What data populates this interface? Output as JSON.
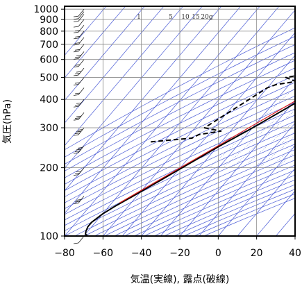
{
  "chart_data": {
    "type": "line",
    "subtype": "skew-t log-p sounding",
    "xlabel": "気温(実線), 露点(破線)",
    "ylabel": "気圧(hPa)",
    "xlim": [
      -80,
      40
    ],
    "ylim": [
      1030,
      100
    ],
    "y_scale": "log",
    "x_ticks": [
      "−80",
      "−60",
      "−40",
      "−20",
      "0",
      "20",
      "40"
    ],
    "x_tick_values": [
      -80,
      -60,
      -40,
      -20,
      0,
      20,
      40
    ],
    "y_ticks": [
      "100",
      "200",
      "300",
      "400",
      "500",
      "600",
      "700",
      "800",
      "900",
      "1000"
    ],
    "y_tick_values": [
      100,
      200,
      300,
      400,
      500,
      600,
      700,
      800,
      900,
      1000
    ],
    "grid": true,
    "mixing_ratio_labels": [
      "1",
      "5",
      "10",
      "15",
      "20g"
    ],
    "series": [
      {
        "role": "temperature",
        "style": "solid",
        "color": "#000000",
        "points": [
          [
            1000,
            27
          ],
          [
            975,
            25
          ],
          [
            950,
            24.5
          ],
          [
            925,
            22
          ],
          [
            900,
            20
          ],
          [
            850,
            16
          ],
          [
            800,
            13
          ],
          [
            750,
            9
          ],
          [
            700,
            6
          ],
          [
            650,
            3.5
          ],
          [
            620,
            2.5
          ],
          [
            600,
            3
          ],
          [
            550,
            0
          ],
          [
            500,
            -6
          ],
          [
            450,
            -11
          ],
          [
            400,
            -17
          ],
          [
            350,
            -23
          ],
          [
            300,
            -30
          ],
          [
            250,
            -39
          ],
          [
            200,
            -49
          ],
          [
            175,
            -55
          ],
          [
            150,
            -62
          ],
          [
            135,
            -67
          ],
          [
            125,
            -70
          ],
          [
            115,
            -72
          ],
          [
            110,
            -72
          ],
          [
            105,
            -71
          ],
          [
            102,
            -70
          ],
          [
            100,
            -68
          ]
        ]
      },
      {
        "role": "dewpoint",
        "style": "dashed",
        "color": "#000000",
        "points": [
          [
            1000,
            23
          ],
          [
            980,
            22
          ],
          [
            950,
            23
          ],
          [
            925,
            18
          ],
          [
            900,
            14
          ],
          [
            880,
            12
          ],
          [
            860,
            10
          ],
          [
            830,
            8
          ],
          [
            800,
            5
          ],
          [
            760,
            3
          ],
          [
            700,
            2
          ],
          [
            650,
            -2
          ],
          [
            620,
            -12
          ],
          [
            600,
            -35
          ],
          [
            590,
            -23
          ],
          [
            570,
            -33
          ],
          [
            550,
            -22
          ],
          [
            530,
            -31
          ],
          [
            520,
            -25
          ],
          [
            500,
            -35
          ],
          [
            480,
            -28
          ],
          [
            465,
            -37
          ],
          [
            450,
            -40
          ],
          [
            300,
            -55
          ],
          [
            290,
            -45
          ],
          [
            280,
            -55
          ],
          [
            270,
            -57
          ],
          [
            260,
            -77
          ]
        ]
      },
      {
        "role": "reference",
        "style": "solid",
        "color": "#e02020",
        "points": [
          [
            1000,
            29
          ],
          [
            950,
            25
          ],
          [
            900,
            21
          ],
          [
            850,
            17.5
          ],
          [
            800,
            14
          ],
          [
            750,
            10.5
          ],
          [
            700,
            7
          ],
          [
            650,
            3
          ],
          [
            600,
            0
          ],
          [
            550,
            -4
          ],
          [
            500,
            -8.5
          ],
          [
            450,
            -13.5
          ],
          [
            400,
            -19
          ],
          [
            350,
            -25
          ],
          [
            300,
            -32
          ],
          [
            250,
            -40
          ],
          [
            200,
            -50
          ],
          [
            160,
            -60
          ],
          [
            140,
            -66
          ]
        ]
      }
    ],
    "wind_barbs": [
      {
        "p": 1000,
        "speed": 10
      },
      {
        "p": 975,
        "speed": 5
      },
      {
        "p": 950,
        "speed": 10
      },
      {
        "p": 900,
        "speed": 10
      },
      {
        "p": 850,
        "speed": 15
      },
      {
        "p": 800,
        "speed": 15
      },
      {
        "p": 750,
        "speed": 20
      },
      {
        "p": 700,
        "speed": 20
      },
      {
        "p": 650,
        "speed": 25
      },
      {
        "p": 600,
        "speed": 20
      },
      {
        "p": 550,
        "speed": 25
      },
      {
        "p": 500,
        "speed": 20
      },
      {
        "p": 450,
        "speed": 20
      },
      {
        "p": 400,
        "speed": 25
      },
      {
        "p": 350,
        "speed": 30
      },
      {
        "p": 300,
        "speed": 35
      },
      {
        "p": 250,
        "speed": 40
      },
      {
        "p": 200,
        "speed": 30
      },
      {
        "p": 150,
        "speed": 25
      },
      {
        "p": 100,
        "speed": 10
      }
    ]
  }
}
